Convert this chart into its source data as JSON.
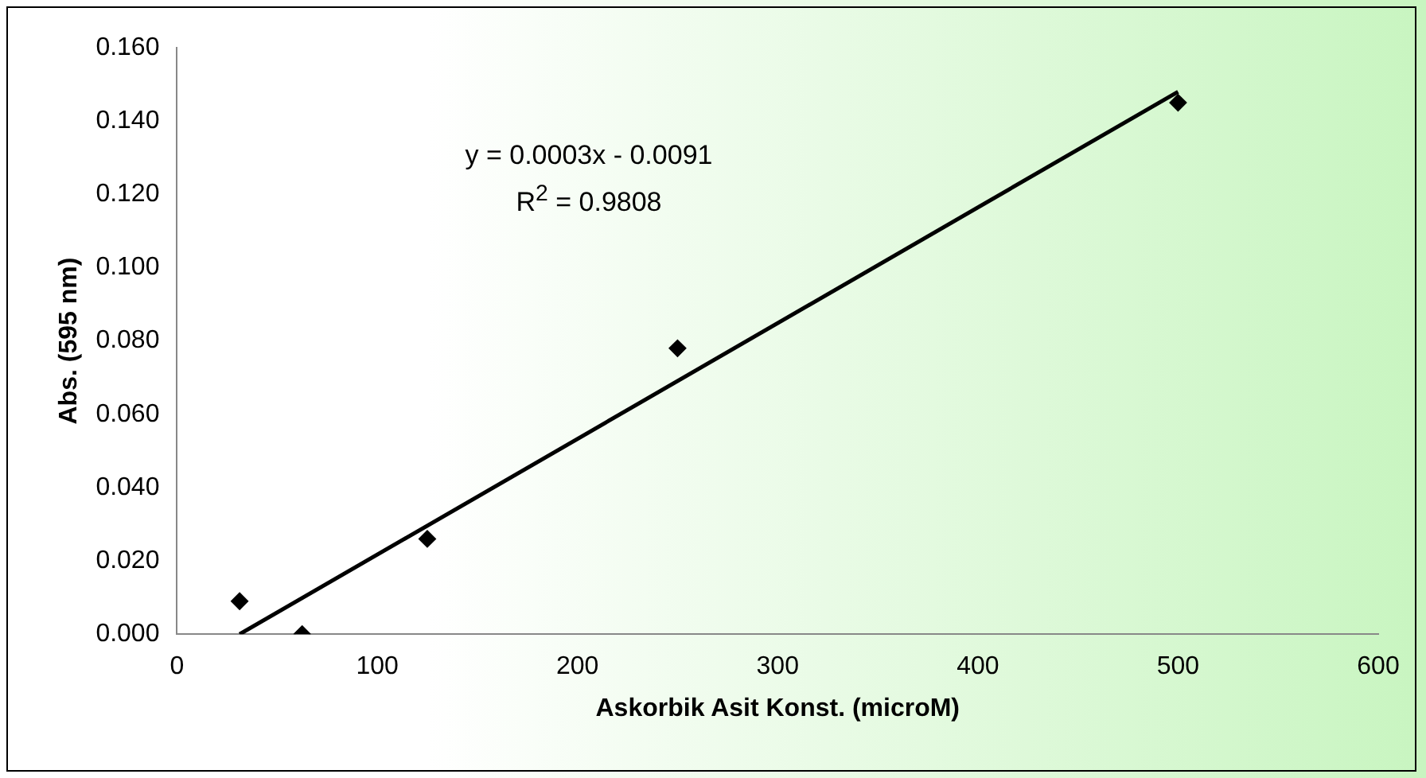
{
  "chart_data": {
    "type": "scatter",
    "xlabel": "Askorbik Asit Konst. (microM)",
    "ylabel": "Abs. (595 nm)",
    "annotations": [
      "y = 0.0003x - 0.0091",
      "R$^{2}$ = 0.9808"
    ],
    "xlim": [
      0,
      600
    ],
    "xticks": [
      0,
      100,
      200,
      300,
      400,
      500,
      600
    ],
    "ylim": [
      0,
      0.16
    ],
    "yticks": [
      {
        "value": 0,
        "label": "0.000"
      },
      {
        "value": 0.02,
        "label": "0.020"
      },
      {
        "value": 0.04,
        "label": "0.040"
      },
      {
        "value": 0.06,
        "label": "0.060"
      },
      {
        "value": 0.08,
        "label": "0.080"
      },
      {
        "value": 0.1,
        "label": "0.100"
      },
      {
        "value": 0.12,
        "label": "0.120"
      },
      {
        "value": 0.14,
        "label": "0.140"
      },
      {
        "value": 0.16,
        "label": "0.160"
      }
    ],
    "grid": false,
    "series": [
      {
        "type": "scatter",
        "color": "#000000",
        "marker": "diamond",
        "x": [
          31.25,
          62.5,
          125,
          250,
          500
        ],
        "values": [
          0.009,
          0.0,
          0.026,
          0.078,
          0.145
        ]
      },
      {
        "type": "line",
        "color": "#000000",
        "marker": "none",
        "line_style": "solid",
        "x": [
          31.25,
          500
        ],
        "values": [
          0.0,
          0.148
        ]
      }
    ]
  }
}
